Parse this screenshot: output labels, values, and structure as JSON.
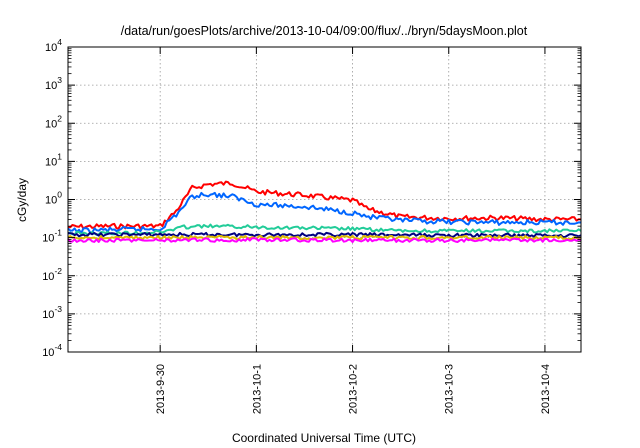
{
  "chart_data": {
    "type": "line",
    "title": "/data/run/goesPlots/archive/2013-10-04/09:00/flux/../bryn/5daysMoon.plot",
    "xlabel": "Coordinated Universal Time (UTC)",
    "ylabel": "cGy/day",
    "y_scale": "log",
    "ylim": [
      0.0001,
      10000
    ],
    "xlim": [
      "2013-09-29T01:00",
      "2013-10-04T09:00"
    ],
    "x_ticks": [
      "2013-9-30",
      "2013-10-1",
      "2013-10-2",
      "2013-10-3",
      "2013-10-4"
    ],
    "y_ticks": [
      {
        "base": "10",
        "exp": "-4"
      },
      {
        "base": "10",
        "exp": "-3"
      },
      {
        "base": "10",
        "exp": "-2"
      },
      {
        "base": "10",
        "exp": "-1"
      },
      {
        "base": "10",
        "exp": "0"
      },
      {
        "base": "10",
        "exp": "1"
      },
      {
        "base": "10",
        "exp": "2"
      },
      {
        "base": "10",
        "exp": "3"
      },
      {
        "base": "10",
        "exp": "4"
      }
    ],
    "grid": true,
    "legend": "none",
    "series": [
      {
        "color": "#ff0000",
        "x": [
          "2013-09-29T01:00",
          "2013-09-29T12:00",
          "2013-09-30T00:00",
          "2013-09-30T04:00",
          "2013-09-30T08:00",
          "2013-09-30T12:00",
          "2013-09-30T18:00",
          "2013-10-01T00:00",
          "2013-10-01T12:00",
          "2013-10-02T00:00",
          "2013-10-02T04:00",
          "2013-10-02T12:00",
          "2013-10-03T00:00",
          "2013-10-03T12:00",
          "2013-10-04T00:00",
          "2013-10-04T09:00"
        ],
        "y": [
          0.19,
          0.2,
          0.2,
          0.5,
          2.0,
          2.5,
          2.7,
          1.6,
          1.3,
          0.95,
          0.55,
          0.35,
          0.32,
          0.33,
          0.3,
          0.3
        ]
      },
      {
        "color": "#0066ff",
        "x": [
          "2013-09-29T01:00",
          "2013-09-29T12:00",
          "2013-09-30T00:00",
          "2013-09-30T04:00",
          "2013-09-30T08:00",
          "2013-09-30T12:00",
          "2013-09-30T18:00",
          "2013-10-01T00:00",
          "2013-10-01T12:00",
          "2013-10-02T00:00",
          "2013-10-02T04:00",
          "2013-10-02T12:00",
          "2013-10-03T00:00",
          "2013-10-03T12:00",
          "2013-10-04T00:00",
          "2013-10-04T09:00"
        ],
        "y": [
          0.15,
          0.16,
          0.17,
          0.4,
          1.2,
          1.4,
          1.2,
          0.75,
          0.65,
          0.45,
          0.35,
          0.28,
          0.26,
          0.25,
          0.25,
          0.25
        ]
      },
      {
        "color": "#22cc99",
        "x": [
          "2013-09-29T01:00",
          "2013-09-29T12:00",
          "2013-09-30T00:00",
          "2013-09-30T06:00",
          "2013-09-30T12:00",
          "2013-10-01T00:00",
          "2013-10-01T12:00",
          "2013-10-02T00:00",
          "2013-10-02T12:00",
          "2013-10-03T00:00",
          "2013-10-04T00:00",
          "2013-10-04T09:00"
        ],
        "y": [
          0.13,
          0.13,
          0.14,
          0.19,
          0.2,
          0.19,
          0.18,
          0.17,
          0.15,
          0.15,
          0.15,
          0.15
        ]
      },
      {
        "color": "#000080",
        "x": [
          "2013-09-29T01:00",
          "2013-09-30T00:00",
          "2013-10-01T00:00",
          "2013-10-02T00:00",
          "2013-10-03T00:00",
          "2013-10-04T00:00",
          "2013-10-04T09:00"
        ],
        "y": [
          0.12,
          0.12,
          0.12,
          0.12,
          0.115,
          0.115,
          0.115
        ]
      },
      {
        "color": "#ddbb00",
        "x": [
          "2013-09-29T01:00",
          "2013-09-30T00:00",
          "2013-10-01T00:00",
          "2013-10-02T00:00",
          "2013-10-03T00:00",
          "2013-10-04T00:00",
          "2013-10-04T09:00"
        ],
        "y": [
          0.1,
          0.1,
          0.1,
          0.1,
          0.1,
          0.1,
          0.1
        ]
      },
      {
        "color": "#ff00ff",
        "x": [
          "2013-09-29T01:00",
          "2013-09-30T00:00",
          "2013-10-01T00:00",
          "2013-10-02T00:00",
          "2013-10-03T00:00",
          "2013-10-04T00:00",
          "2013-10-04T09:00"
        ],
        "y": [
          0.085,
          0.085,
          0.088,
          0.085,
          0.085,
          0.085,
          0.085
        ]
      }
    ]
  }
}
